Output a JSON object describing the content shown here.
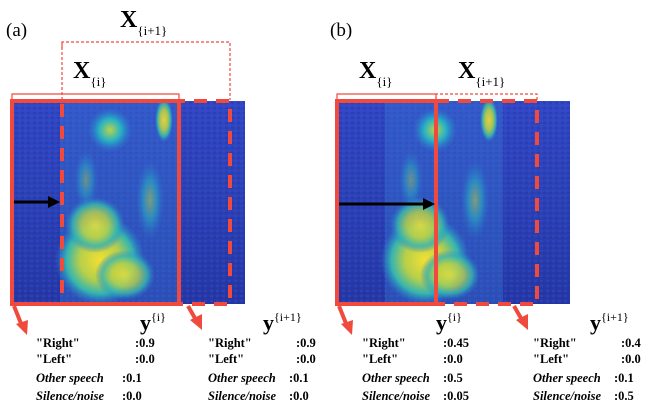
{
  "panels": [
    {
      "label": "(a)",
      "segment_current": {
        "name": "X",
        "superscript": "{i}"
      },
      "segment_next": {
        "name": "X",
        "superscript": "{i+1}"
      },
      "output_current": {
        "name": "y",
        "superscript": "{i}",
        "rows": [
          {
            "label": "\"Right\"",
            "italic": false,
            "value": ":0.9"
          },
          {
            "label": "\"Left\"",
            "italic": false,
            "value": ":0.0"
          },
          {
            "label": "Other speech",
            "italic": true,
            "value": ":0.1"
          },
          {
            "label": "Silence/noise",
            "italic": true,
            "value": ":0.0"
          }
        ]
      },
      "output_next": {
        "name": "y",
        "superscript": "{i+1}",
        "rows": [
          {
            "label": "\"Right\"",
            "italic": false,
            "value": ":0.9"
          },
          {
            "label": "\"Left\"",
            "italic": false,
            "value": ":0.0"
          },
          {
            "label": "Other speech",
            "italic": true,
            "value": ":0.1"
          },
          {
            "label": "Silence/noise",
            "italic": true,
            "value": ":0.0"
          }
        ]
      }
    },
    {
      "label": "(b)",
      "segment_current": {
        "name": "X",
        "superscript": "{i}"
      },
      "segment_next": {
        "name": "X",
        "superscript": "{i+1}"
      },
      "output_current": {
        "name": "y",
        "superscript": "{i}",
        "rows": [
          {
            "label": "\"Right\"",
            "italic": false,
            "value": ":0.45"
          },
          {
            "label": "\"Left\"",
            "italic": false,
            "value": ":0.0"
          },
          {
            "label": "Other speech",
            "italic": true,
            "value": ":0.5"
          },
          {
            "label": "Silence/noise",
            "italic": true,
            "value": ":0.05"
          }
        ]
      },
      "output_next": {
        "name": "y",
        "superscript": "{i+1}",
        "rows": [
          {
            "label": "\"Right\"",
            "italic": false,
            "value": ":0.4"
          },
          {
            "label": "\"Left\"",
            "italic": false,
            "value": ":0.0"
          },
          {
            "label": "Other speech",
            "italic": true,
            "value": ":0.1"
          },
          {
            "label": "Silence/noise",
            "italic": true,
            "value": ":0.5"
          }
        ]
      }
    }
  ],
  "colors": {
    "accent_red": "#f04a3e",
    "spectrogram_low": "#2e3fb0",
    "spectrogram_mid": "#1fa6c9",
    "spectrogram_high": "#e8dc2a",
    "arrow": "#000000"
  }
}
